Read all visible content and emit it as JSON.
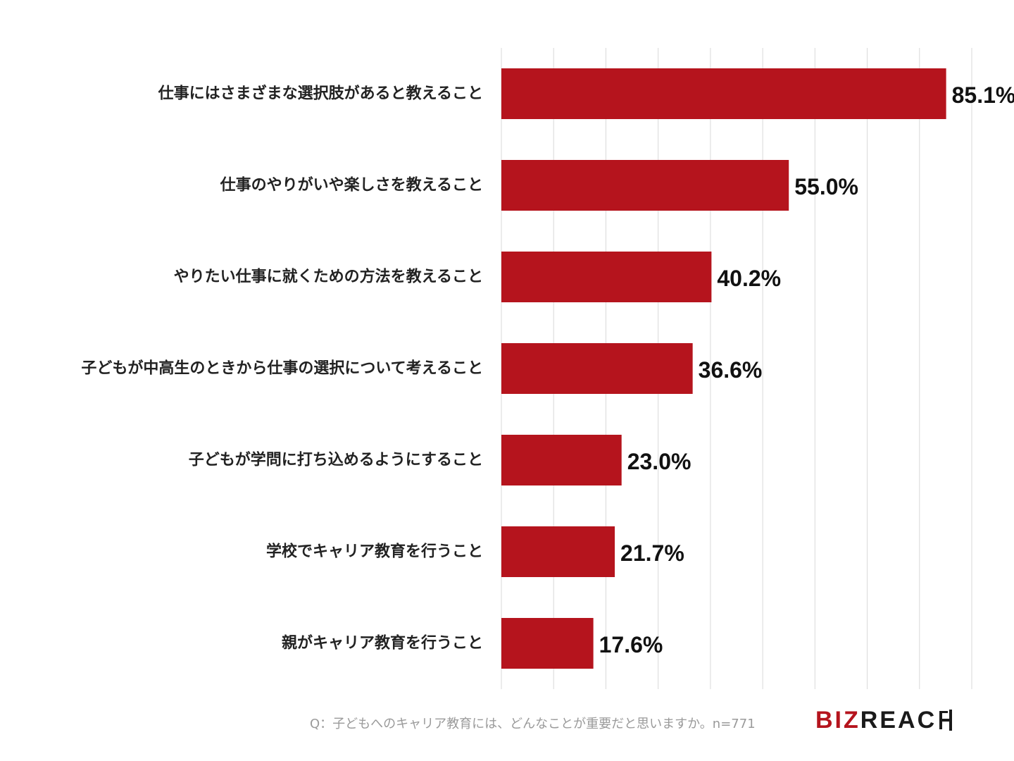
{
  "chart_data": {
    "type": "bar",
    "orientation": "horizontal",
    "categories": [
      "仕事にはさまざまな選択肢があると教えること",
      "仕事のやりがいや楽しさを教えること",
      "やりたい仕事に就くための方法を教えること",
      "子どもが中高生のときから仕事の選択について考えること",
      "子どもが学問に打ち込めるようにすること",
      "学校でキャリア教育を行うこと",
      "親がキャリア教育を行うこと"
    ],
    "values": [
      85.1,
      55.0,
      40.2,
      36.6,
      23.0,
      21.7,
      17.6
    ],
    "value_labels": [
      "85.1%",
      "55.0%",
      "40.2%",
      "36.6%",
      "23.0%",
      "21.7%",
      "17.6%"
    ],
    "xlim": [
      0,
      90
    ],
    "grid": true,
    "bar_color": "#b5141d"
  },
  "footnote": "Q：子どもへのキャリア教育には、どんなことが重要だと思いますか。n=771",
  "logo": {
    "part1": "BIZ",
    "part2": "REAC"
  }
}
